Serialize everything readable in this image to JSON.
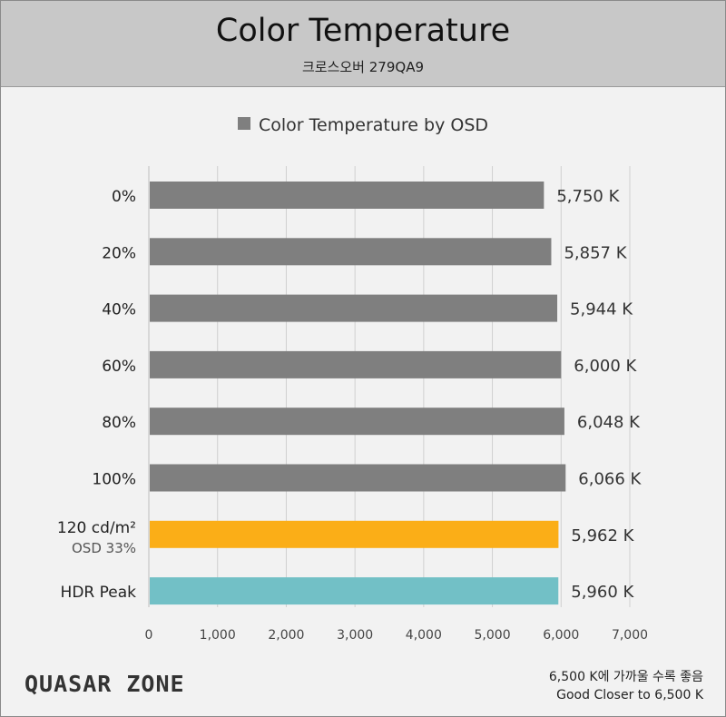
{
  "header": {
    "title": "Color Temperature",
    "subtitle": "크로스오버 279QA9"
  },
  "chart_data": {
    "type": "bar",
    "orientation": "horizontal",
    "categories": [
      {
        "label": "0%",
        "sublabel": ""
      },
      {
        "label": "20%",
        "sublabel": ""
      },
      {
        "label": "40%",
        "sublabel": ""
      },
      {
        "label": "60%",
        "sublabel": ""
      },
      {
        "label": "80%",
        "sublabel": ""
      },
      {
        "label": "100%",
        "sublabel": ""
      },
      {
        "label": "120 cd/m²",
        "sublabel": "OSD 33%"
      },
      {
        "label": "HDR Peak",
        "sublabel": ""
      }
    ],
    "values": [
      5750,
      5857,
      5944,
      6000,
      6048,
      6066,
      5962,
      5960
    ],
    "value_labels": [
      "5,750 K",
      "5,857 K",
      "5,944 K",
      "6,000 K",
      "6,048 K",
      "6,066 K",
      "5,962 K",
      "5,960 K"
    ],
    "bar_colors": [
      "#7f7f7f",
      "#7f7f7f",
      "#7f7f7f",
      "#7f7f7f",
      "#7f7f7f",
      "#7f7f7f",
      "#fbae17",
      "#72c0c6"
    ],
    "series": [
      {
        "name": "Color Temperature by OSD",
        "color": "#7f7f7f"
      }
    ],
    "xlim": [
      0,
      7000
    ],
    "xticks": [
      0,
      1000,
      2000,
      3000,
      4000,
      5000,
      6000,
      7000
    ],
    "xtick_labels": [
      "0",
      "1,000",
      "2,000",
      "3,000",
      "4,000",
      "5,000",
      "6,000",
      "7,000"
    ],
    "grid": true,
    "legend_position": "top-center"
  },
  "footer": {
    "logo": "QUASAR ZONE",
    "note_ko": "6,500 K에 가까울 수록 좋음",
    "note_en": "Good Closer to 6,500 K"
  }
}
